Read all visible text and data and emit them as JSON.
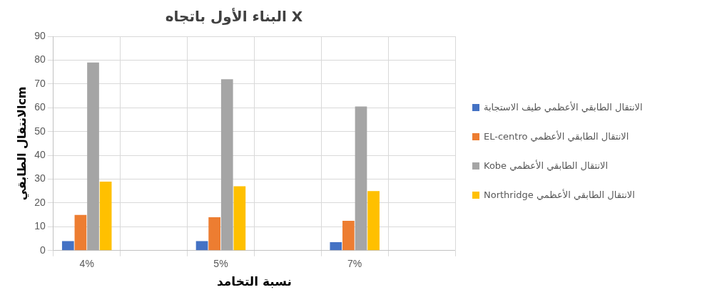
{
  "chart_data": {
    "type": "bar",
    "title": "البناء الأول باتجاه X",
    "xlabel": "نسبة التخامد",
    "ylabel": "الانتقال الطابقيcm",
    "categories": [
      "4%",
      null,
      "5%",
      null,
      "7%",
      null
    ],
    "series": [
      {
        "name": "الانتقال الطابقي الأعظمي  طيف الاستجابة",
        "color": "#4472c4",
        "values": [
          4,
          null,
          4,
          null,
          3.5,
          null
        ]
      },
      {
        "name": "الانتقال الطابقي الأعظمي EL-centro",
        "color": "#ed7d31",
        "values": [
          15,
          null,
          14,
          null,
          12.5,
          null
        ]
      },
      {
        "name": "الانتقال الطابقي الأعظمي Kobe",
        "color": "#a5a5a5",
        "values": [
          79,
          null,
          72,
          null,
          60.5,
          null
        ]
      },
      {
        "name": "الانتقال الطابقي الأعظمي Northridge",
        "color": "#ffc000",
        "values": [
          29,
          null,
          27,
          null,
          25,
          null
        ]
      }
    ],
    "ylim": [
      0,
      90
    ],
    "yticks": [
      0,
      10,
      20,
      30,
      40,
      50,
      60,
      70,
      80,
      90
    ],
    "grid": true,
    "legend": "right"
  }
}
